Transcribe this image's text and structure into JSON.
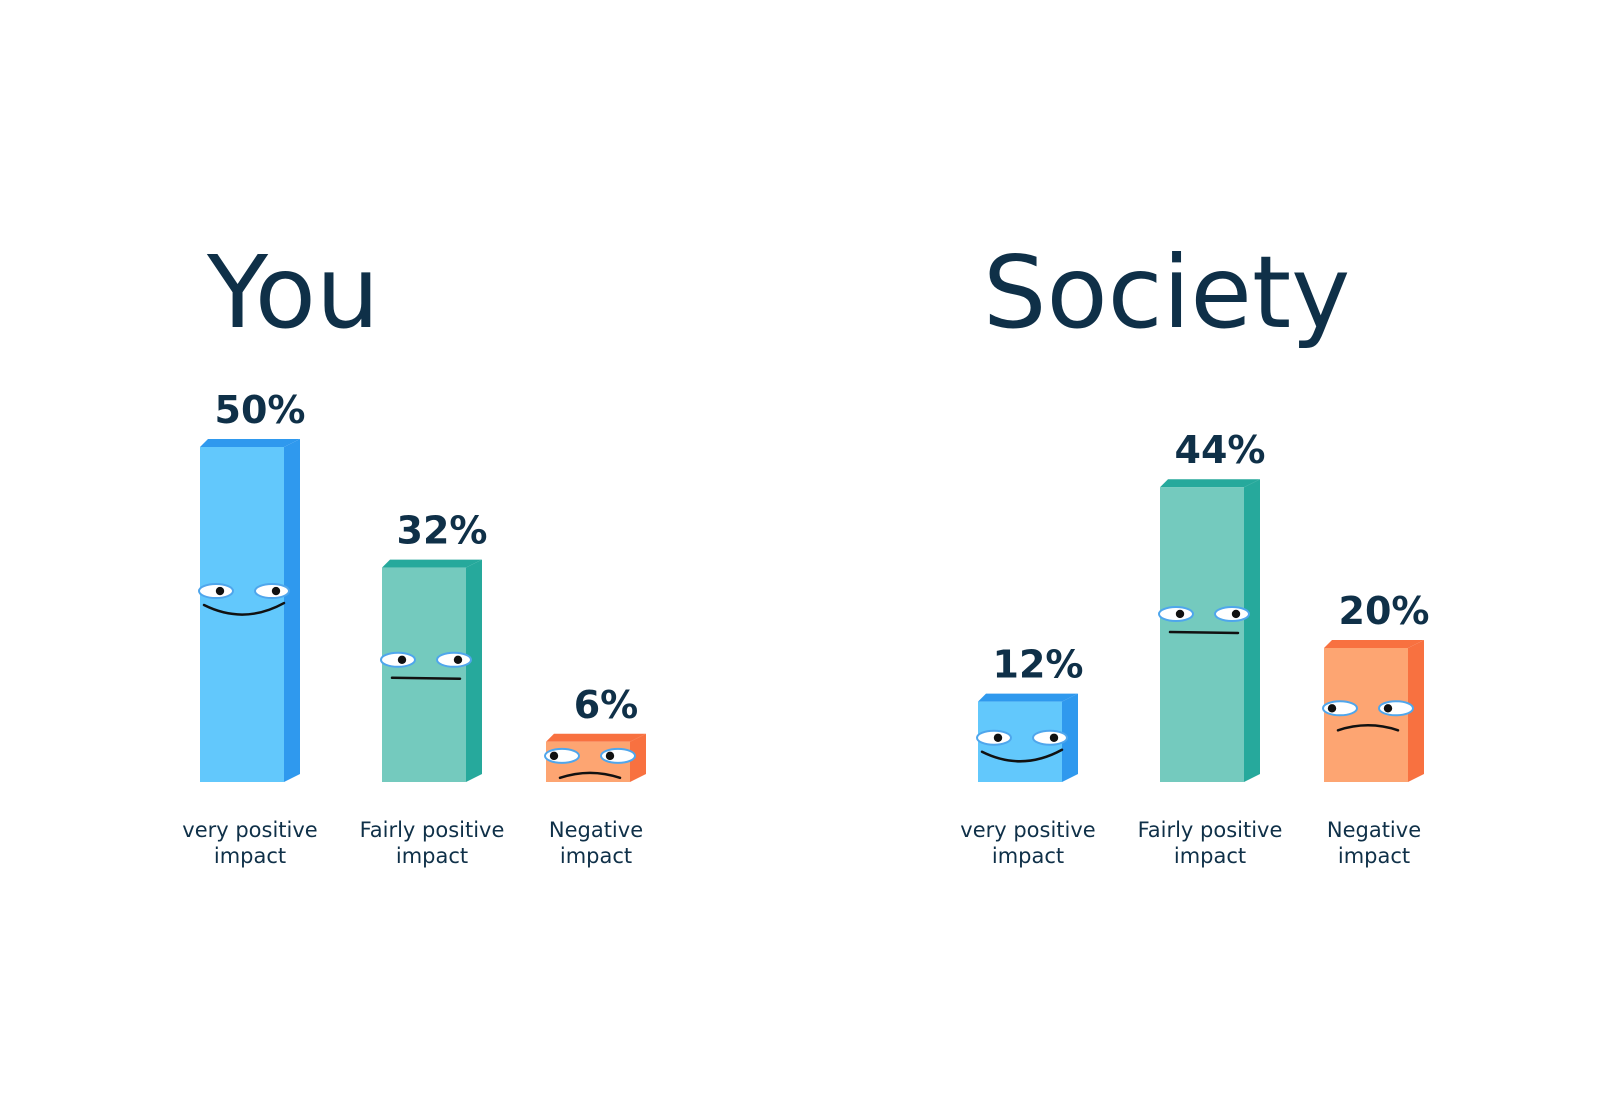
{
  "chart_data": [
    {
      "type": "bar",
      "title": "You",
      "categories": [
        "very positive impact",
        "Fairly positive impact",
        "Negative impact"
      ],
      "category_lines": [
        [
          "very positive",
          "impact"
        ],
        [
          "Fairly positive",
          "impact"
        ],
        [
          "Negative",
          "impact"
        ]
      ],
      "values": [
        50,
        32,
        6
      ],
      "value_labels": [
        "50%",
        "32%",
        "6%"
      ],
      "unit": "%",
      "faces": [
        "smile",
        "neutral",
        "frown"
      ],
      "colors": [
        {
          "front": "#62c8fc",
          "side": "#2f99ee"
        },
        {
          "front": "#74cabe",
          "side": "#26a99c"
        },
        {
          "front": "#fda572",
          "side": "#f87140"
        }
      ]
    },
    {
      "type": "bar",
      "title": "Society",
      "categories": [
        "very positive impact",
        "Fairly positive impact",
        "Negative impact"
      ],
      "category_lines": [
        [
          "very positive",
          "impact"
        ],
        [
          "Fairly positive",
          "impact"
        ],
        [
          "Negative",
          "impact"
        ]
      ],
      "values": [
        12,
        44,
        20
      ],
      "value_labels": [
        "12%",
        "44%",
        "20%"
      ],
      "unit": "%",
      "faces": [
        "smile",
        "neutral",
        "frown"
      ],
      "colors": [
        {
          "front": "#62c8fc",
          "side": "#2f99ee"
        },
        {
          "front": "#74cabe",
          "side": "#26a99c"
        },
        {
          "front": "#fda572",
          "side": "#f87140"
        }
      ]
    }
  ]
}
